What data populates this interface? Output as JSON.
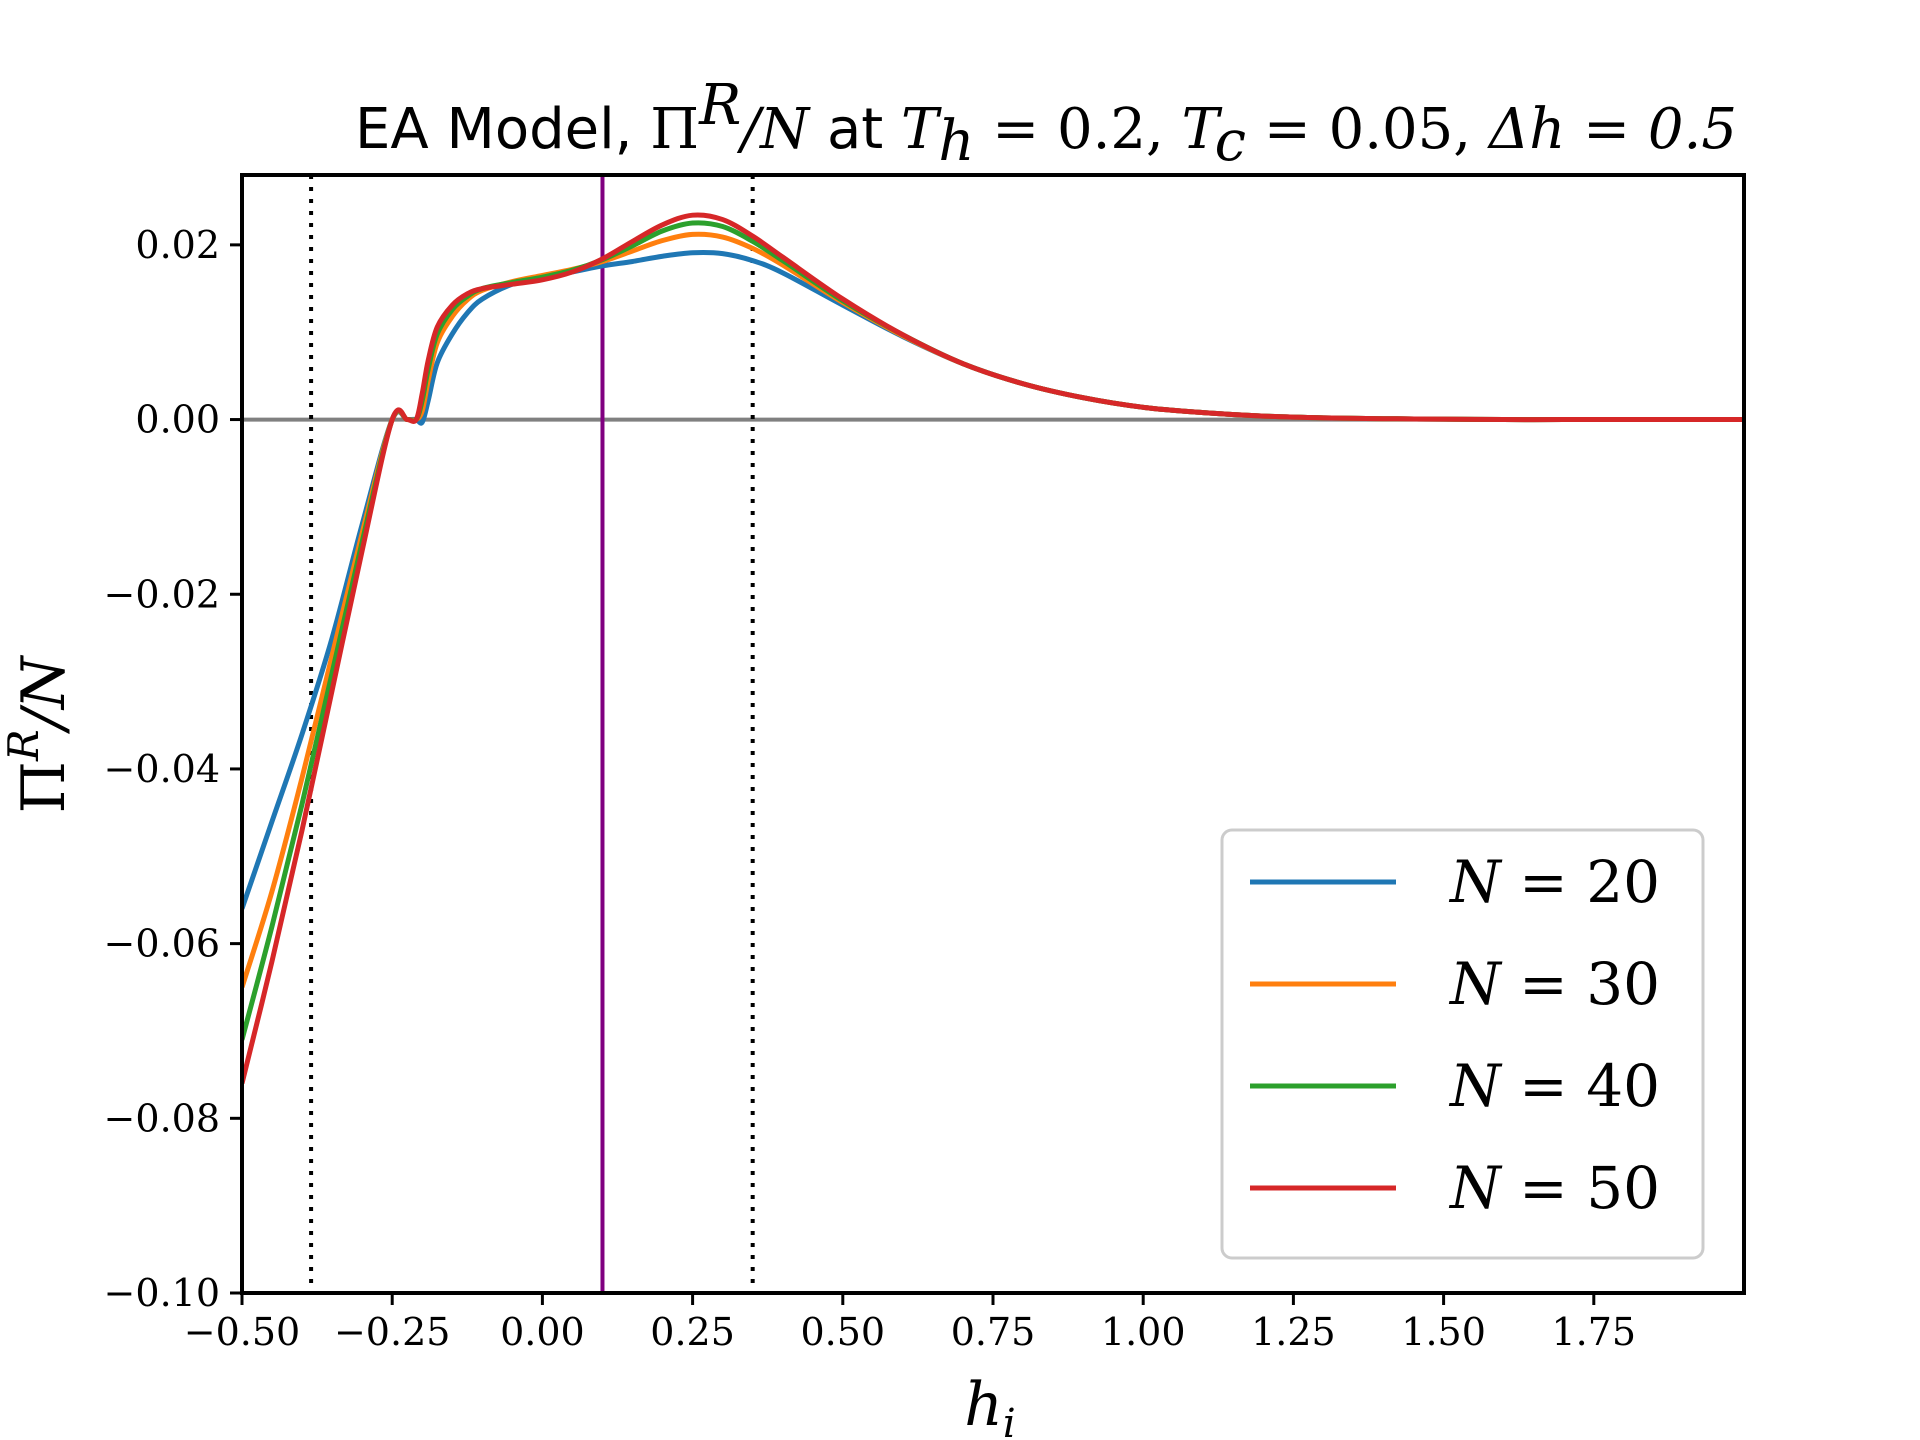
{
  "chart_data": {
    "type": "line",
    "title": {
      "prefix": "EA Model, ",
      "quantity": "Π",
      "quantity_sup": "R",
      "quantity_rest": "/N",
      "at_word": " at ",
      "th": "T",
      "th_sub": "h",
      "th_value": " = 0.2, ",
      "tc": "T",
      "tc_sub": "c",
      "tc_value": " = 0.05, ",
      "dh": "Δh = 0.5"
    },
    "xlabel": "h",
    "xlabel_sub": "i",
    "ylabel": "Π",
    "ylabel_sup": "R",
    "ylabel_rest": "/N",
    "xlim": [
      -0.5,
      2.0
    ],
    "ylim": [
      -0.1,
      0.028
    ],
    "xticks": [
      -0.5,
      -0.25,
      0.0,
      0.25,
      0.5,
      0.75,
      1.0,
      1.25,
      1.5,
      1.75
    ],
    "xtick_labels": [
      "−0.50",
      "−0.25",
      "0.00",
      "0.25",
      "0.50",
      "0.75",
      "1.00",
      "1.25",
      "1.50",
      "1.75"
    ],
    "yticks": [
      -0.1,
      -0.08,
      -0.06,
      -0.04,
      -0.02,
      0.0,
      0.02
    ],
    "ytick_labels": [
      "−0.10",
      "−0.08",
      "−0.06",
      "−0.04",
      "−0.02",
      "0.00",
      "0.02"
    ],
    "legend_position": "lower-right",
    "reference_lines": {
      "horizontal_zero": {
        "y": 0.0,
        "color": "#808080"
      },
      "vertical_solid": {
        "x": 0.1,
        "color": "#800080"
      },
      "vertical_dotted": [
        {
          "x": -0.385,
          "color": "#000000"
        },
        {
          "x": 0.35,
          "color": "#000000"
        }
      ]
    },
    "series": [
      {
        "name": "N = 20",
        "color": "#1f77b4",
        "x": [
          -0.5,
          -0.45,
          -0.4,
          -0.35,
          -0.3,
          -0.25,
          -0.225,
          -0.21,
          -0.2,
          -0.19,
          -0.175,
          -0.15,
          -0.125,
          -0.1,
          -0.05,
          0.0,
          0.05,
          0.1,
          0.15,
          0.2,
          0.25,
          0.3,
          0.35,
          0.4,
          0.5,
          0.6,
          0.7,
          0.8,
          0.9,
          1.0,
          1.1,
          1.2,
          1.3,
          1.4,
          1.5,
          1.6,
          1.7,
          1.8,
          1.9,
          2.0
        ],
        "y": [
          -0.056,
          -0.046,
          -0.036,
          -0.025,
          -0.012,
          0.0,
          0.0,
          0.0,
          -0.0003,
          0.0022,
          0.0065,
          0.0098,
          0.0122,
          0.0138,
          0.0155,
          0.0163,
          0.0169,
          0.0176,
          0.0181,
          0.0187,
          0.0191,
          0.019,
          0.0182,
          0.0168,
          0.0131,
          0.0095,
          0.0064,
          0.0041,
          0.0025,
          0.0014,
          0.0008,
          0.0004,
          0.0002,
          0.0001,
          5e-05,
          0.0,
          0.0,
          0.0,
          0.0,
          0.0
        ]
      },
      {
        "name": "N = 30",
        "color": "#ff7f0e",
        "x": [
          -0.5,
          -0.45,
          -0.4,
          -0.35,
          -0.3,
          -0.25,
          -0.225,
          -0.21,
          -0.2,
          -0.19,
          -0.175,
          -0.15,
          -0.125,
          -0.1,
          -0.05,
          0.0,
          0.05,
          0.1,
          0.15,
          0.2,
          0.25,
          0.3,
          0.35,
          0.4,
          0.5,
          0.6,
          0.7,
          0.8,
          0.9,
          1.0,
          1.1,
          1.2,
          1.3,
          1.4,
          1.5,
          1.6,
          1.7,
          1.8,
          1.9,
          2.0
        ],
        "y": [
          -0.065,
          -0.054,
          -0.041,
          -0.027,
          -0.013,
          0.0,
          0.0,
          0.0,
          0.001,
          0.0045,
          0.0088,
          0.0118,
          0.0137,
          0.0148,
          0.0158,
          0.0165,
          0.0172,
          0.0181,
          0.0193,
          0.0205,
          0.0212,
          0.0209,
          0.0196,
          0.0177,
          0.0134,
          0.0096,
          0.0064,
          0.0041,
          0.0025,
          0.0014,
          0.0008,
          0.0004,
          0.0002,
          0.0001,
          5e-05,
          0.0,
          0.0,
          0.0,
          0.0,
          0.0
        ]
      },
      {
        "name": "N = 40",
        "color": "#2ca02c",
        "x": [
          -0.5,
          -0.45,
          -0.4,
          -0.35,
          -0.3,
          -0.25,
          -0.225,
          -0.21,
          -0.2,
          -0.19,
          -0.175,
          -0.15,
          -0.125,
          -0.1,
          -0.05,
          0.0,
          0.05,
          0.1,
          0.15,
          0.2,
          0.25,
          0.3,
          0.35,
          0.4,
          0.5,
          0.6,
          0.7,
          0.8,
          0.9,
          1.0,
          1.1,
          1.2,
          1.3,
          1.4,
          1.5,
          1.6,
          1.7,
          1.8,
          1.9,
          2.0
        ],
        "y": [
          -0.071,
          -0.058,
          -0.044,
          -0.029,
          -0.014,
          0.0,
          0.0,
          0.0,
          0.0022,
          0.0058,
          0.0098,
          0.0126,
          0.0141,
          0.015,
          0.0157,
          0.0163,
          0.0171,
          0.0183,
          0.0199,
          0.0216,
          0.0225,
          0.0221,
          0.0204,
          0.0182,
          0.0136,
          0.0097,
          0.0064,
          0.0041,
          0.0025,
          0.0014,
          0.0008,
          0.0004,
          0.0002,
          0.0001,
          5e-05,
          0.0,
          0.0,
          0.0,
          0.0,
          0.0
        ]
      },
      {
        "name": "N = 50",
        "color": "#d62728",
        "x": [
          -0.5,
          -0.45,
          -0.4,
          -0.35,
          -0.3,
          -0.25,
          -0.225,
          -0.21,
          -0.2,
          -0.19,
          -0.175,
          -0.15,
          -0.125,
          -0.1,
          -0.05,
          0.0,
          0.05,
          0.1,
          0.15,
          0.2,
          0.25,
          0.3,
          0.35,
          0.4,
          0.5,
          0.6,
          0.7,
          0.8,
          0.9,
          1.0,
          1.1,
          1.2,
          1.3,
          1.4,
          1.5,
          1.6,
          1.7,
          1.8,
          1.9,
          2.0
        ],
        "y": [
          -0.076,
          -0.062,
          -0.047,
          -0.031,
          -0.015,
          0.0,
          0.0,
          0.0,
          0.003,
          0.0068,
          0.0106,
          0.0131,
          0.0144,
          0.015,
          0.0155,
          0.016,
          0.0169,
          0.0184,
          0.0204,
          0.0223,
          0.0234,
          0.0229,
          0.021,
          0.0186,
          0.0138,
          0.0097,
          0.0064,
          0.0041,
          0.0025,
          0.0014,
          0.0008,
          0.0004,
          0.0002,
          0.0001,
          5e-05,
          0.0,
          0.0,
          0.0,
          0.0,
          0.0
        ]
      }
    ]
  }
}
